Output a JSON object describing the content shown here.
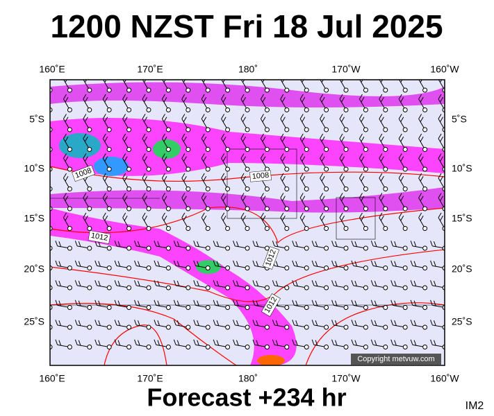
{
  "header": {
    "title": "1200 NZST Fri 18 Jul 2025"
  },
  "map": {
    "top_labels": [
      "160˚E",
      "170˚E",
      "180˚",
      "170˚W",
      "160˚W"
    ],
    "bottom_labels": [
      "160˚E",
      "170˚E",
      "180˚",
      "170˚W",
      "160˚W"
    ],
    "left_labels": [
      "5˚S",
      "10˚S",
      "15˚S",
      "20˚S",
      "25˚S"
    ],
    "right_labels": [
      "5˚S",
      "10˚S",
      "15˚S",
      "20˚S",
      "25˚S"
    ],
    "isobar_labels": [
      "1008",
      "1008",
      "1012",
      "1012",
      "1012"
    ],
    "copyright": "Copyright metvuw.com"
  },
  "footer": {
    "forecast": "Forecast +234 hr",
    "code": "IM2"
  }
}
